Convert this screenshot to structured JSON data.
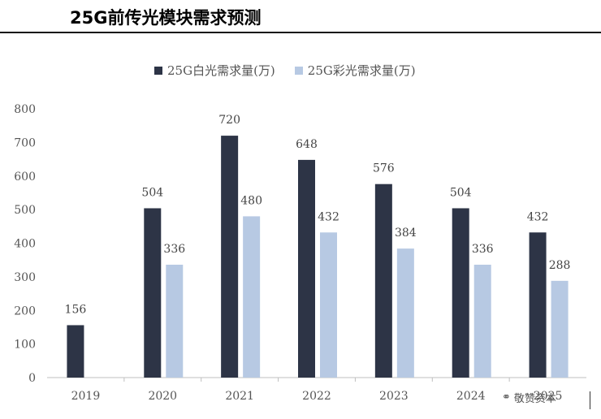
{
  "header": {
    "title": "25G前传光模块需求预测"
  },
  "watermark": {
    "icon": "wechat-icon",
    "text": "敬赞资本"
  },
  "chart_data": {
    "type": "bar",
    "title": "25G前传光模块需求预测",
    "categories": [
      "2019",
      "2020",
      "2021",
      "2022",
      "2023",
      "2024",
      "2025"
    ],
    "series": [
      {
        "name": "25G白光需求量(万)",
        "color": "#2d3446",
        "values": [
          156,
          504,
          720,
          648,
          576,
          504,
          432
        ]
      },
      {
        "name": "25G彩光需求量(万)",
        "color": "#b7c9e3",
        "values": [
          null,
          336,
          480,
          432,
          384,
          336,
          288
        ]
      }
    ],
    "ylim": [
      0,
      800
    ],
    "yticks": [
      "0",
      "100",
      "200",
      "300",
      "400",
      "500",
      "600",
      "700",
      "800"
    ],
    "xlabel": "",
    "ylabel": "",
    "grid": false,
    "legend": "top-center"
  }
}
